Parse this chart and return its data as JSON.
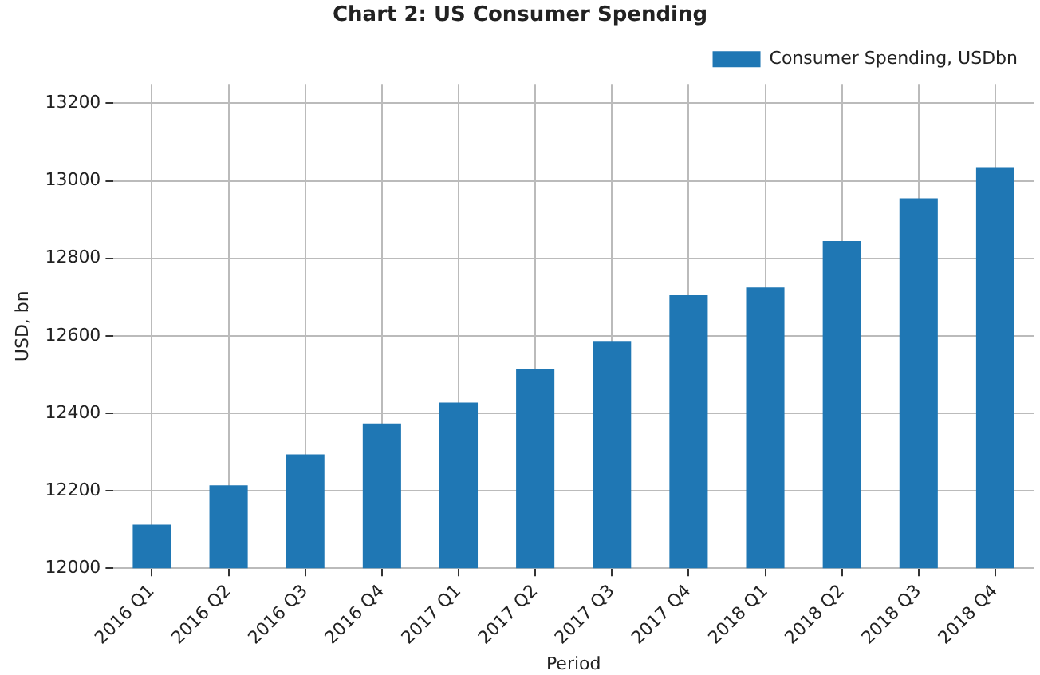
{
  "chart_data": {
    "type": "bar",
    "title": "Chart 2: US Consumer Spending",
    "xlabel": "Period",
    "ylabel": "USD, bn",
    "categories": [
      "2016 Q1",
      "2016 Q2",
      "2016 Q3",
      "2016 Q4",
      "2017 Q1",
      "2017 Q2",
      "2017 Q3",
      "2017 Q4",
      "2018 Q1",
      "2018 Q2",
      "2018 Q3",
      "2018 Q4"
    ],
    "series": [
      {
        "name": "Consumer Spending, USDbn",
        "color": "#1f77b4",
        "values": [
          12113,
          12214,
          12294,
          12374,
          12428,
          12515,
          12585,
          12705,
          12725,
          12845,
          12955,
          13035
        ]
      }
    ],
    "ylim": [
      12000,
      13250
    ],
    "yticks": [
      12000,
      12200,
      12400,
      12600,
      12800,
      13000,
      13200
    ],
    "grid": true,
    "legend": "top right"
  }
}
